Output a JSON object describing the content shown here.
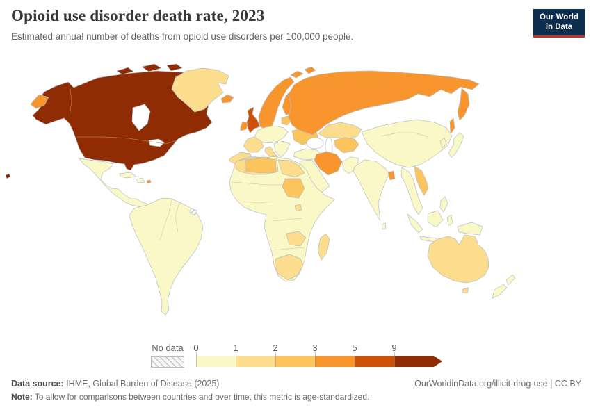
{
  "header": {
    "title": "Opioid use disorder death rate, 2023",
    "subtitle": "Estimated annual number of deaths from opioid use disorders per 100,000 people.",
    "logo": {
      "line1": "Our World",
      "line2": "in Data",
      "bg_color": "#0c2d4e",
      "accent_color": "#c5342c"
    }
  },
  "legend": {
    "no_data_label": "No data",
    "ticks": [
      "0",
      "1",
      "2",
      "3",
      "5",
      "9"
    ],
    "bin_colors": [
      "#fbf8c8",
      "#fcdd8d",
      "#fcc45d",
      "#f8952d",
      "#cd5208",
      "#8f2c04"
    ]
  },
  "map": {
    "border_color": "#b6bec6",
    "water_color": "#ffffff",
    "fills": {
      "north_america": "#8f2c04",
      "hawaii": "#8f2c04",
      "arctic_islands": "#8f2c04",
      "greenland": "#fcdd8d",
      "iceland": "#f8952d",
      "mexico_central_america": "#fbf8c8",
      "cuba": "#fbf8c8",
      "hispaniola": "#fbf8c8",
      "puerto_rico": "#f8952d",
      "south_america": "#fbf8c8",
      "united_kingdom": "#cd5208",
      "ireland": "#f8952d",
      "scandinavia": "#f8952d",
      "finland": "#f8952d",
      "denmark": "#f8952d",
      "svalbard": "#f8952d",
      "baltics": "#fcc45d",
      "central_europe": "#fbf8c8",
      "france": "#fcdd8d",
      "iberia": "#fcdd8d",
      "italy": "#fcdd8d",
      "balkans": "#fbf8c8",
      "ukraine": "#fcc45d",
      "russia": "#f8952d",
      "chukotka": "#f8952d",
      "kamchatka": "#f8952d",
      "sakhalin": "#f8952d",
      "kazakhstan": "#fcdd8d",
      "central_asia": "#fcc45d",
      "afghanistan_pakistan": "#fbf8c8",
      "turkey": "#fbf8c8",
      "iran": "#f8952d",
      "middle_east": "#fbf8c8",
      "africa": "#fbf8c8",
      "north_africa": "#fcdd8d",
      "algeria_libya": "#fcc45d",
      "egypt": "#fcdd8d",
      "sudan": "#fcc45d",
      "uganda": "#fcdd8d",
      "zambia": "#fcdd8d",
      "south_africa": "#fcdd8d",
      "madagascar": "#fcdd8d",
      "india": "#fbf8c8",
      "sri_lanka": "#fbf8c8",
      "bangladesh": "#f8952d",
      "china": "#fbf8c8",
      "korea": "#fbf8c8",
      "japan": "#fbf8c8",
      "se_asia": "#fbf8c8",
      "vietnam": "#fcc45d",
      "philippines": "#fbf8c8",
      "indonesia": "#fbf8c8",
      "new_guinea": "#fbf8c8",
      "australia": "#fcdd8d",
      "tasmania": "#fcdd8d",
      "new_zealand": "#fbf8c8"
    }
  },
  "footer": {
    "source_label": "Data source:",
    "source_text": " IHME, Global Burden of Disease (2025)",
    "rights_text": "OurWorldinData.org/illicit-drug-use | CC BY",
    "note_label": "Note:",
    "note_text": " To allow for comparisons between countries and over time, this metric is age-standardized."
  },
  "chart_data": {
    "type": "heatmap",
    "subtype": "world-choropleth",
    "title": "Opioid use disorder death rate, 2023",
    "subtitle": "Estimated annual number of deaths from opioid use disorders per 100,000 people.",
    "unit": "deaths per 100,000 people (age-standardized)",
    "year": 2023,
    "legend_position": "bottom",
    "scale_ticks": [
      0,
      1,
      2,
      3,
      5,
      9
    ],
    "bin_labels": [
      "0-1",
      "1-2",
      "2-3",
      "3-5",
      "5-9",
      "9+"
    ],
    "bin_colors": [
      "#fbf8c8",
      "#fcdd8d",
      "#fcc45d",
      "#f8952d",
      "#cd5208",
      "#8f2c04"
    ],
    "no_data_style": "gray diagonal hatch",
    "regions": [
      {
        "name": "United States",
        "bin": "9+"
      },
      {
        "name": "Canada",
        "bin": "9+"
      },
      {
        "name": "Greenland",
        "bin": "1-2"
      },
      {
        "name": "Iceland",
        "bin": "3-5"
      },
      {
        "name": "Mexico",
        "bin": "0-1"
      },
      {
        "name": "Central America & Caribbean",
        "bin": "0-1"
      },
      {
        "name": "Puerto Rico",
        "bin": "3-5"
      },
      {
        "name": "South America",
        "bin": "0-1"
      },
      {
        "name": "French Guiana",
        "bin": "No data"
      },
      {
        "name": "United Kingdom",
        "bin": "5-9"
      },
      {
        "name": "Ireland",
        "bin": "3-5"
      },
      {
        "name": "Norway, Sweden, Finland, Denmark",
        "bin": "3-5"
      },
      {
        "name": "Estonia, Latvia, Lithuania",
        "bin": "2-3"
      },
      {
        "name": "Germany & Central Europe",
        "bin": "0-1"
      },
      {
        "name": "France",
        "bin": "1-2"
      },
      {
        "name": "Spain & Portugal",
        "bin": "1-2"
      },
      {
        "name": "Italy",
        "bin": "1-2"
      },
      {
        "name": "Ukraine",
        "bin": "2-3"
      },
      {
        "name": "Russia",
        "bin": "3-5"
      },
      {
        "name": "Kazakhstan",
        "bin": "1-2"
      },
      {
        "name": "Uzbekistan & Turkmenistan",
        "bin": "2-3"
      },
      {
        "name": "Turkey",
        "bin": "0-1"
      },
      {
        "name": "Iran",
        "bin": "3-5"
      },
      {
        "name": "Saudi Arabia & Middle East",
        "bin": "0-1"
      },
      {
        "name": "Morocco, Algeria, Libya",
        "bin": "1-2"
      },
      {
        "name": "Egypt",
        "bin": "1-2"
      },
      {
        "name": "Sudan",
        "bin": "2-3"
      },
      {
        "name": "Sub-Saharan Africa",
        "bin": "0-1"
      },
      {
        "name": "Zambia",
        "bin": "1-2"
      },
      {
        "name": "South Africa",
        "bin": "1-2"
      },
      {
        "name": "Madagascar",
        "bin": "1-2"
      },
      {
        "name": "India",
        "bin": "0-1"
      },
      {
        "name": "Bangladesh",
        "bin": "3-5"
      },
      {
        "name": "China",
        "bin": "0-1"
      },
      {
        "name": "Japan & Korea",
        "bin": "0-1"
      },
      {
        "name": "Mainland Southeast Asia",
        "bin": "0-1"
      },
      {
        "name": "Vietnam",
        "bin": "2-3"
      },
      {
        "name": "Indonesia & Philippines",
        "bin": "0-1"
      },
      {
        "name": "Australia",
        "bin": "1-2"
      },
      {
        "name": "New Zealand",
        "bin": "0-1"
      }
    ]
  }
}
